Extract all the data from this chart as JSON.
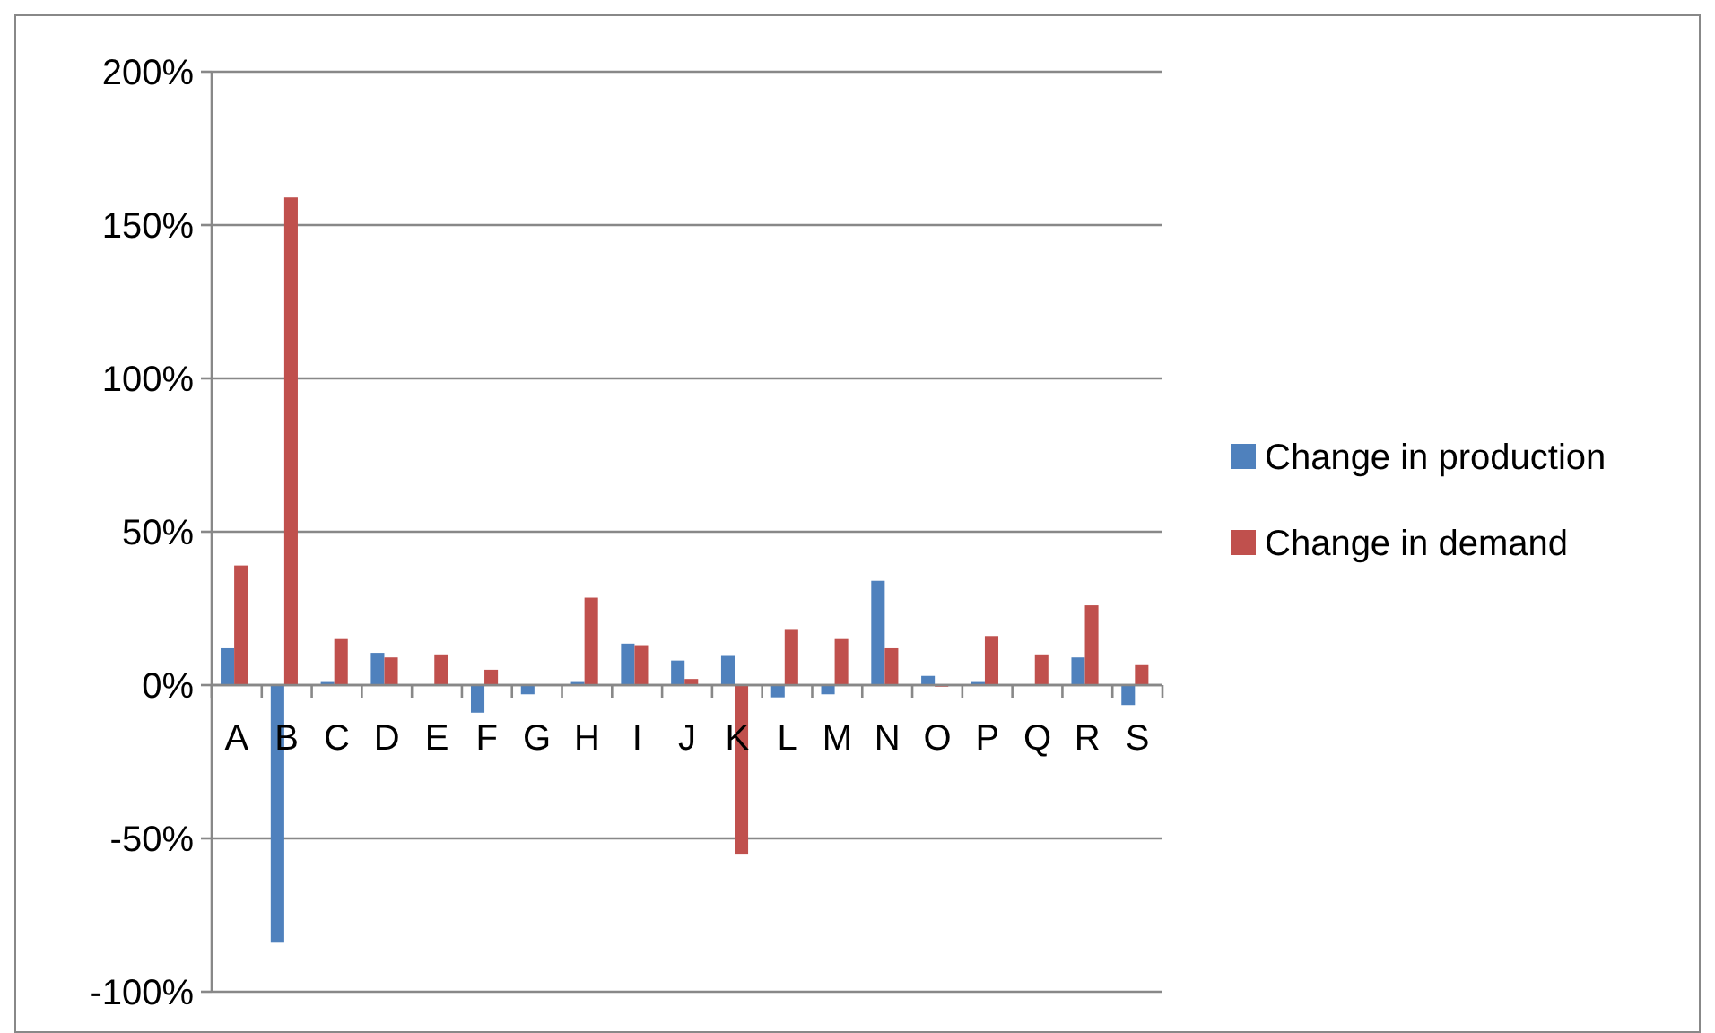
{
  "chart_data": {
    "type": "bar",
    "categories": [
      "A",
      "B",
      "C",
      "D",
      "E",
      "F",
      "G",
      "H",
      "I",
      "J",
      "K",
      "L",
      "M",
      "N",
      "O",
      "P",
      "Q",
      "R",
      "S"
    ],
    "series": [
      {
        "name": "Change in production",
        "color": "#4f81bd",
        "values": [
          12,
          -84,
          1,
          10.5,
          0,
          -9,
          -3,
          1,
          13.5,
          8,
          9.5,
          -4,
          -3,
          34,
          3,
          1,
          0,
          9,
          -6.5
        ]
      },
      {
        "name": "Change in demand",
        "color": "#c0504d",
        "values": [
          39,
          159,
          15,
          9,
          10,
          5,
          0,
          28.5,
          13,
          2,
          -55,
          18,
          15,
          12,
          -0.5,
          16,
          10,
          26,
          6.5
        ]
      }
    ],
    "ylim": [
      -100,
      200
    ],
    "yticks": [
      {
        "value": -100,
        "label": "-100%"
      },
      {
        "value": -50,
        "label": "-50%"
      },
      {
        "value": 0,
        "label": "0%"
      },
      {
        "value": 50,
        "label": "50%"
      },
      {
        "value": 100,
        "label": "100%"
      },
      {
        "value": 150,
        "label": "150%"
      },
      {
        "value": 200,
        "label": "200%"
      }
    ],
    "grid": "y",
    "legend": "right"
  }
}
